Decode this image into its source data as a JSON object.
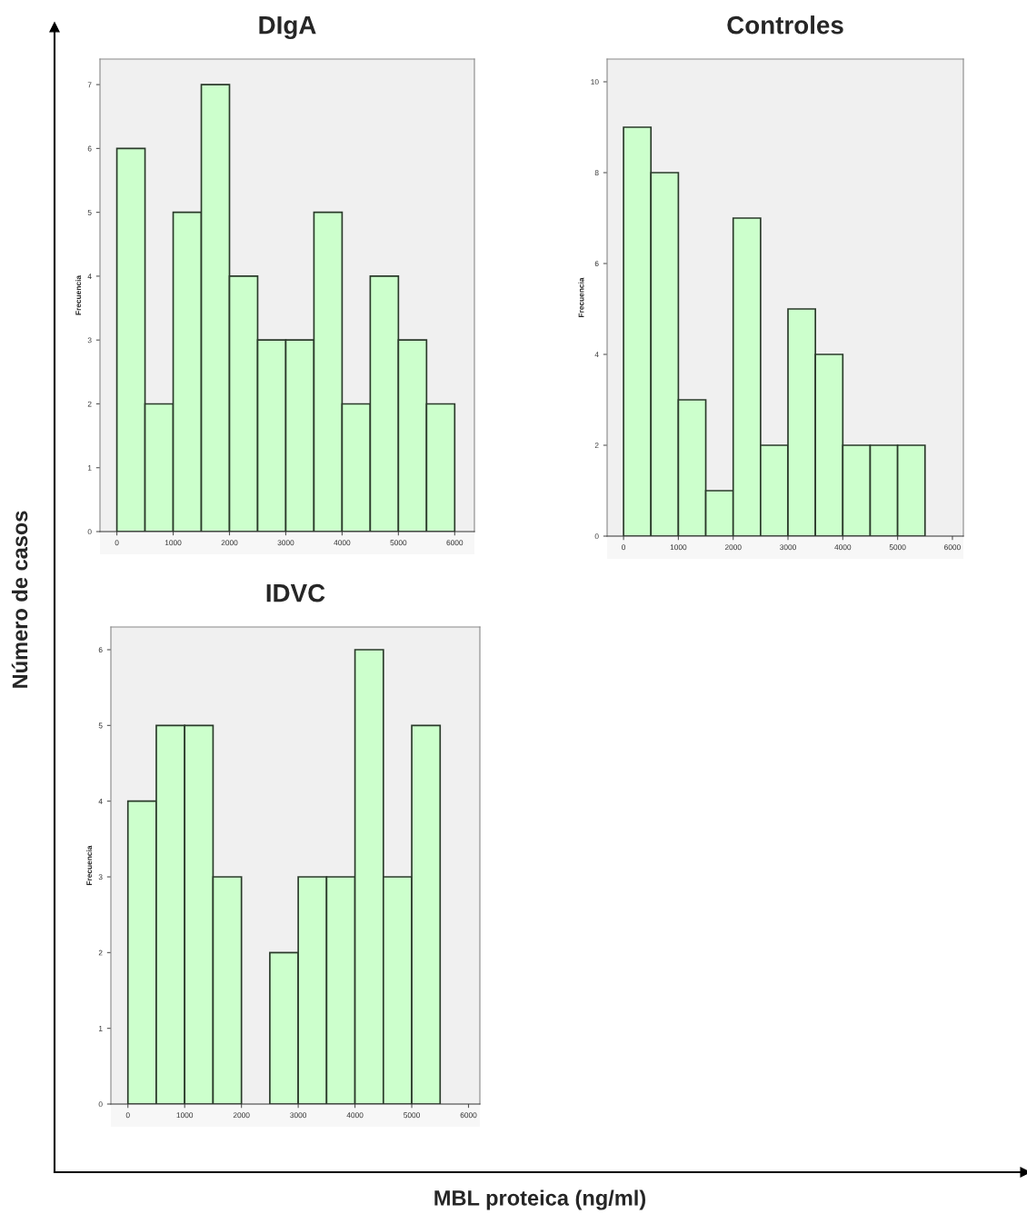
{
  "chart_data": [
    {
      "type": "histogram",
      "title": "DIgA",
      "ylabel": "Frecuencia",
      "bins": [
        0,
        500,
        1000,
        1500,
        2000,
        2500,
        3000,
        3500,
        4000,
        4500,
        5000,
        5500,
        6000
      ],
      "values": [
        6,
        2,
        5,
        7,
        4,
        3,
        3,
        5,
        2,
        4,
        3,
        2
      ],
      "color": "#ccffcc",
      "xlim": [
        -300,
        6350
      ],
      "xticks": [
        0,
        1000,
        2000,
        3000,
        4000,
        5000,
        6000
      ],
      "ylim": [
        0,
        7.4
      ],
      "yticks": [
        0,
        1,
        2,
        3,
        4,
        5,
        6,
        7
      ],
      "grid": false
    },
    {
      "type": "histogram",
      "title": "Controles",
      "ylabel": "Frecuencia",
      "bins": [
        0,
        500,
        1000,
        1500,
        2000,
        2500,
        3000,
        3500,
        4000,
        4500,
        5000,
        5500
      ],
      "values": [
        9,
        8,
        3,
        1,
        7,
        2,
        5,
        4,
        2,
        2,
        2
      ],
      "color": "#ccffcc",
      "xlim": [
        -300,
        6200
      ],
      "xticks": [
        0,
        1000,
        2000,
        3000,
        4000,
        5000,
        6000
      ],
      "ylim": [
        0,
        10.5
      ],
      "yticks": [
        0,
        2,
        4,
        6,
        8,
        10
      ],
      "grid": false
    },
    {
      "type": "histogram",
      "title": "IDVC",
      "ylabel": "Frecuencia",
      "bins": [
        0,
        500,
        1000,
        1500,
        2000,
        2500,
        3000,
        3500,
        4000,
        4500,
        5000,
        5500
      ],
      "values": [
        4,
        5,
        5,
        3,
        0,
        2,
        3,
        3,
        6,
        3,
        5
      ],
      "color": "#ccffcc",
      "xlim": [
        -300,
        6200
      ],
      "xticks": [
        0,
        1000,
        2000,
        3000,
        4000,
        5000,
        6000
      ],
      "ylim": [
        0,
        6.3
      ],
      "yticks": [
        0,
        1,
        2,
        3,
        4,
        5,
        6
      ],
      "grid": false
    },
    {
      "type": "other",
      "xlabel": "MBL proteica (ng/ml)",
      "ylabel": "Número de casos"
    }
  ]
}
